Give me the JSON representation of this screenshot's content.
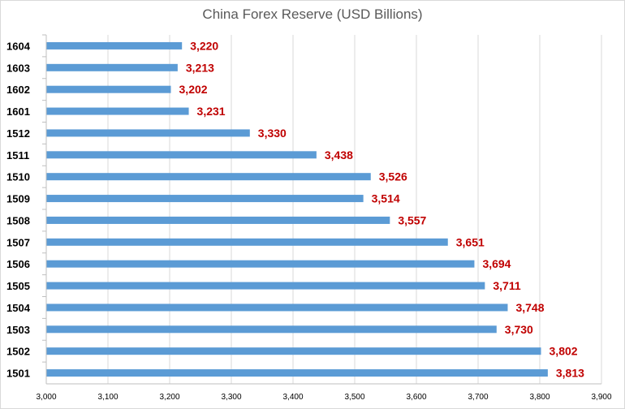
{
  "chart_data": {
    "type": "bar",
    "orientation": "horizontal",
    "title": "China Forex Reserve (USD Billions)",
    "xlabel": "",
    "ylabel": "",
    "categories": [
      "1604",
      "1603",
      "1602",
      "1601",
      "1512",
      "1511",
      "1510",
      "1509",
      "1508",
      "1507",
      "1506",
      "1505",
      "1504",
      "1503",
      "1502",
      "1501"
    ],
    "values": [
      3220,
      3213,
      3202,
      3231,
      3330,
      3438,
      3526,
      3514,
      3557,
      3651,
      3694,
      3711,
      3748,
      3730,
      3802,
      3813
    ],
    "data_labels": [
      "3,220",
      "3,213",
      "3,202",
      "3,231",
      "3,330",
      "3,438",
      "3,526",
      "3,514",
      "3,557",
      "3,651",
      "3,694",
      "3,711",
      "3,748",
      "3,730",
      "3,802",
      "3,813"
    ],
    "xlim": [
      3000,
      3900
    ],
    "x_ticks": [
      "3,000",
      "3,100",
      "3,200",
      "3,300",
      "3,400",
      "3,500",
      "3,600",
      "3,700",
      "3,800",
      "3,900"
    ],
    "grid": true,
    "legend": "none",
    "colors": {
      "bar": "#5b9bd5",
      "data_label": "#c00000",
      "grid": "#d9d9d9",
      "axis": "#bfbfbf"
    }
  }
}
